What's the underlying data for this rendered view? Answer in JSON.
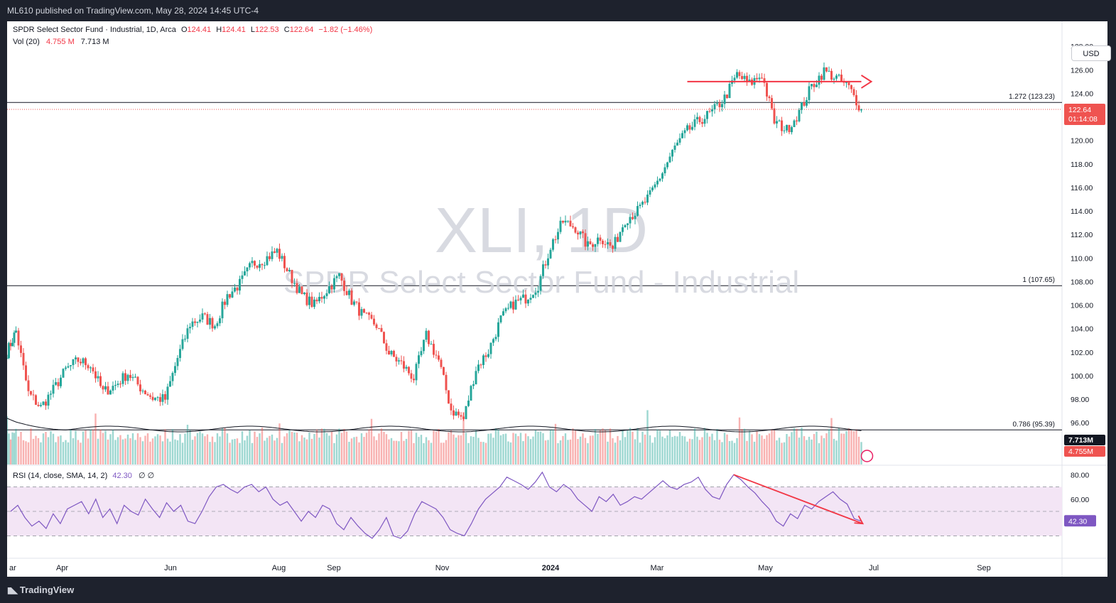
{
  "header": {
    "published": "ML610 published on TradingView.com, May 28, 2024 14:45 UTC-4"
  },
  "footer": {
    "brand": "TradingView",
    "brand_icon": "tradingview-logo-icon"
  },
  "currency_button": "USD",
  "legend": {
    "symbol_line": "SPDR Select Sector Fund · Industrial, 1D, Arca",
    "ohlc": {
      "o_label": "O",
      "o": "124.41",
      "h_label": "H",
      "h": "124.41",
      "l_label": "L",
      "l": "122.53",
      "c_label": "C",
      "c": "122.64",
      "change": "−1.82 (−1.46%)"
    },
    "vol_label": "Vol (20)",
    "vol_value": "4.755 M",
    "vol_ma": "7.713 M",
    "rsi_label": "RSI (14, close, SMA, 14, 2)",
    "rsi_value": "42.30",
    "rsi_extra": "∅ ∅"
  },
  "watermark": {
    "ticker": "XLI, 1D",
    "name": "SPDR Select Sector Fund - Industrial"
  },
  "colors": {
    "up": "#26a69a",
    "down": "#ef5350",
    "rsi": "#7e57c2",
    "rsi_band": "#f3e5f5",
    "annotation": "#f23645",
    "axis_text": "#131722"
  },
  "chart_data": [
    {
      "type": "candlestick",
      "title": "SPDR Select Sector Fund - Industrial, 1D, Arca",
      "ylim": [
        94.5,
        128.8
      ],
      "y_ticks": [
        "128.00",
        "126.00",
        "124.00",
        "122.00",
        "120.00",
        "118.00",
        "116.00",
        "114.00",
        "112.00",
        "110.00",
        "108.00",
        "106.00",
        "104.00",
        "102.00",
        "100.00",
        "98.00",
        "96.00"
      ],
      "x_ticks": [
        "ar",
        "Apr",
        "Jun",
        "Aug",
        "Sep",
        "Nov",
        "2024",
        "Mar",
        "May",
        "Jul",
        "Sep"
      ],
      "x_tick_values": [
        "2023-03",
        "2023-04",
        "2023-06",
        "2023-08",
        "2023-09",
        "2023-11",
        "2024-01",
        "2024-03",
        "2024-05",
        "2024-07",
        "2024-09"
      ],
      "close_path": [
        {
          "date": "2023-03-01",
          "close": 102.0
        },
        {
          "date": "2023-03-06",
          "close": 103.8
        },
        {
          "date": "2023-03-13",
          "close": 98.5
        },
        {
          "date": "2023-03-20",
          "close": 97.3
        },
        {
          "date": "2023-03-27",
          "close": 98.8
        },
        {
          "date": "2023-04-03",
          "close": 100.5
        },
        {
          "date": "2023-04-10",
          "close": 101.3
        },
        {
          "date": "2023-04-17",
          "close": 100.9
        },
        {
          "date": "2023-04-24",
          "close": 98.6
        },
        {
          "date": "2023-05-01",
          "close": 99.2
        },
        {
          "date": "2023-05-08",
          "close": 100.2
        },
        {
          "date": "2023-05-15",
          "close": 99.0
        },
        {
          "date": "2023-05-22",
          "close": 98.1
        },
        {
          "date": "2023-05-29",
          "close": 98.0
        },
        {
          "date": "2023-06-05",
          "close": 101.5
        },
        {
          "date": "2023-06-12",
          "close": 104.4
        },
        {
          "date": "2023-06-19",
          "close": 105.0
        },
        {
          "date": "2023-06-26",
          "close": 104.3
        },
        {
          "date": "2023-07-03",
          "close": 106.8
        },
        {
          "date": "2023-07-10",
          "close": 107.8
        },
        {
          "date": "2023-07-17",
          "close": 109.5
        },
        {
          "date": "2023-07-24",
          "close": 109.9
        },
        {
          "date": "2023-07-31",
          "close": 110.6
        },
        {
          "date": "2023-08-07",
          "close": 108.6
        },
        {
          "date": "2023-08-14",
          "close": 106.8
        },
        {
          "date": "2023-08-21",
          "close": 106.0
        },
        {
          "date": "2023-08-28",
          "close": 107.3
        },
        {
          "date": "2023-09-04",
          "close": 108.5
        },
        {
          "date": "2023-09-11",
          "close": 106.4
        },
        {
          "date": "2023-09-18",
          "close": 105.0
        },
        {
          "date": "2023-09-25",
          "close": 104.3
        },
        {
          "date": "2023-10-02",
          "close": 101.9
        },
        {
          "date": "2023-10-09",
          "close": 101.0
        },
        {
          "date": "2023-10-16",
          "close": 99.8
        },
        {
          "date": "2023-10-23",
          "close": 103.4
        },
        {
          "date": "2023-10-30",
          "close": 101.3
        },
        {
          "date": "2023-11-06",
          "close": 97.1
        },
        {
          "date": "2023-11-13",
          "close": 96.3
        },
        {
          "date": "2023-11-20",
          "close": 100.6
        },
        {
          "date": "2023-11-27",
          "close": 102.1
        },
        {
          "date": "2023-12-04",
          "close": 104.8
        },
        {
          "date": "2023-12-11",
          "close": 106.1
        },
        {
          "date": "2023-12-18",
          "close": 106.6
        },
        {
          "date": "2023-12-25",
          "close": 107.7
        },
        {
          "date": "2024-01-01",
          "close": 111.0
        },
        {
          "date": "2024-01-08",
          "close": 113.1
        },
        {
          "date": "2024-01-15",
          "close": 112.6
        },
        {
          "date": "2024-01-22",
          "close": 111.0
        },
        {
          "date": "2024-01-29",
          "close": 111.8
        },
        {
          "date": "2024-02-05",
          "close": 110.8
        },
        {
          "date": "2024-02-12",
          "close": 113.3
        },
        {
          "date": "2024-02-19",
          "close": 114.0
        },
        {
          "date": "2024-02-26",
          "close": 115.3
        },
        {
          "date": "2024-03-04",
          "close": 117.3
        },
        {
          "date": "2024-03-11",
          "close": 119.4
        },
        {
          "date": "2024-03-18",
          "close": 120.8
        },
        {
          "date": "2024-03-25",
          "close": 121.7
        },
        {
          "date": "2024-04-01",
          "close": 122.4
        },
        {
          "date": "2024-04-08",
          "close": 123.6
        },
        {
          "date": "2024-04-15",
          "close": 125.6
        },
        {
          "date": "2024-04-22",
          "close": 124.8
        },
        {
          "date": "2024-04-29",
          "close": 125.6
        },
        {
          "date": "2024-05-06",
          "close": 121.6
        },
        {
          "date": "2024-05-13",
          "close": 120.9
        },
        {
          "date": "2024-05-20",
          "close": 122.4
        },
        {
          "date": "2024-05-27",
          "close": 124.6
        },
        {
          "date": "2024-06-03",
          "close": 125.9
        },
        {
          "date": "2024-06-10",
          "close": 125.3
        },
        {
          "date": "2024-06-17",
          "close": 124.5
        },
        {
          "date": "2024-06-24",
          "close": 122.64
        }
      ],
      "last_price": "122.64",
      "countdown": "01:14:08",
      "fib_levels": [
        {
          "ratio": "1.272",
          "label": "1.272 (123.23)",
          "price": 123.23
        },
        {
          "ratio": "1",
          "label": "1 (107.65)",
          "price": 107.65
        },
        {
          "ratio": "0.786",
          "label": "0.786 (95.39)",
          "price": 95.39
        }
      ],
      "annotation": {
        "kind": "horizontal arrow at resistance",
        "price": 125.0,
        "from_date": "2024-03-18",
        "to_date": "2024-06-24"
      }
    },
    {
      "type": "bar",
      "title": "Vol (20)",
      "last_volume": "4.755M",
      "volume_ma": "7.713M"
    },
    {
      "type": "line",
      "title": "RSI (14, close, SMA, 14, 2)",
      "ylim": [
        14,
        86
      ],
      "y_ticks": [
        "80.00",
        "60.00"
      ],
      "band": [
        30,
        70
      ],
      "midline": 50,
      "last_value": "42.30",
      "values": [
        50,
        55,
        45,
        38,
        42,
        36,
        48,
        40,
        52,
        55,
        58,
        48,
        60,
        45,
        52,
        40,
        55,
        50,
        47,
        60,
        52,
        45,
        57,
        50,
        55,
        42,
        40,
        50,
        62,
        70,
        72,
        68,
        65,
        70,
        72,
        66,
        70,
        60,
        55,
        58,
        50,
        42,
        50,
        45,
        55,
        52,
        40,
        35,
        45,
        38,
        32,
        28,
        35,
        45,
        30,
        28,
        34,
        48,
        58,
        55,
        52,
        45,
        35,
        32,
        30,
        40,
        52,
        60,
        65,
        70,
        78,
        75,
        72,
        68,
        74,
        82,
        70,
        66,
        72,
        68,
        60,
        55,
        50,
        62,
        58,
        64,
        55,
        58,
        62,
        60,
        65,
        70,
        75,
        70,
        68,
        72,
        74,
        78,
        68,
        62,
        60,
        72,
        80,
        76,
        70,
        65,
        58,
        52,
        42,
        38,
        48,
        44,
        55,
        52,
        58,
        62,
        66,
        60,
        56,
        44,
        42
      ]
    }
  ]
}
